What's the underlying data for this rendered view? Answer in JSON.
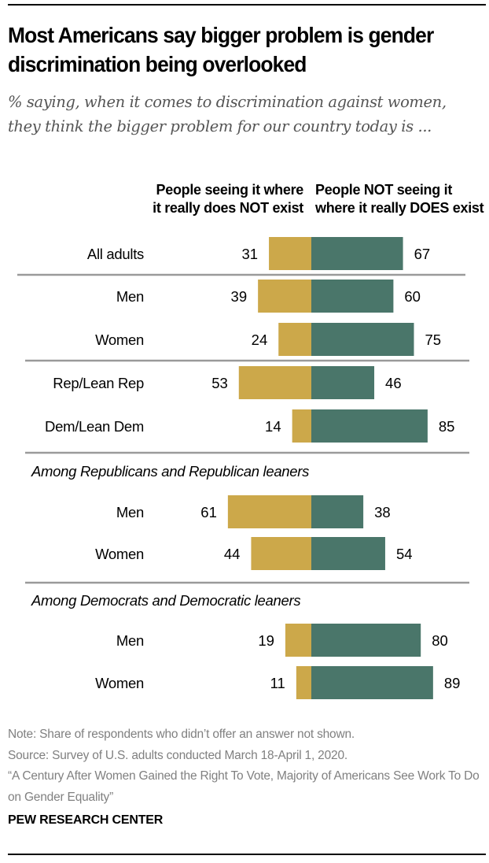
{
  "header": {
    "title": "Most Americans say bigger problem is gender discrimination being overlooked",
    "subtitle": "% saying, when it comes to discrimination against women, they think the bigger problem for our country today is ..."
  },
  "chart_data": {
    "type": "bar",
    "orientation": "horizontal-diverging",
    "title": "Most Americans say bigger problem is gender discrimination being overlooked",
    "subtitle": "% saying, when it comes to discrimination against women, they think the bigger problem for our country today is ...",
    "legend_placement": "top",
    "series": [
      {
        "name": "People seeing it where it really does NOT exist",
        "color": "#CCA84A",
        "side": "left",
        "values": [
          31,
          39,
          24,
          53,
          14,
          61,
          44,
          19,
          11
        ]
      },
      {
        "name": "People NOT seeing it where it really DOES exist",
        "color": "#4A766A",
        "side": "right",
        "values": [
          67,
          60,
          75,
          46,
          85,
          38,
          54,
          80,
          89
        ]
      }
    ],
    "categories": [
      "All adults",
      "Men",
      "Women",
      "Rep/Lean Rep",
      "Dem/Lean Dem",
      "Men",
      "Women",
      "Men",
      "Women"
    ],
    "groups": [
      {
        "header": "",
        "rows": [
          0
        ]
      },
      {
        "header": "",
        "rows": [
          1,
          2
        ]
      },
      {
        "header": "",
        "rows": [
          3,
          4
        ]
      },
      {
        "header": "Among Republicans and Republican leaners",
        "rows": [
          5,
          6
        ]
      },
      {
        "header": "Among Democrats and Democratic leaners",
        "rows": [
          7,
          8
        ]
      }
    ],
    "xlim": [
      0,
      100
    ],
    "grid": false
  },
  "footer": {
    "note": "Note: Share of respondents who didn’t offer an answer not shown.",
    "source": "Source: Survey of U.S. adults conducted March 18-April 1, 2020.",
    "report": "“A Century After Women Gained the Right To Vote, Majority of Americans See Work To Do on Gender Equality”",
    "brand": "PEW RESEARCH CENTER"
  }
}
